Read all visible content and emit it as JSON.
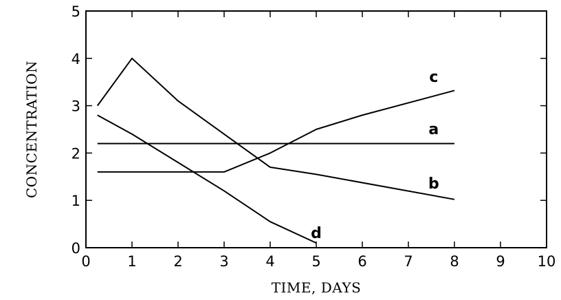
{
  "chart_data": {
    "type": "line",
    "title": "",
    "xlabel": "TIME, DAYS",
    "ylabel": "CONCENTRATION",
    "xlim": [
      0,
      10
    ],
    "ylim": [
      0,
      5
    ],
    "x_ticks": [
      0,
      1,
      2,
      3,
      4,
      5,
      6,
      7,
      8,
      9,
      10
    ],
    "y_ticks": [
      0,
      1,
      2,
      3,
      4,
      5
    ],
    "grid": false,
    "legend": "none",
    "series": [
      {
        "name": "a",
        "x": [
          0.25,
          8
        ],
        "y": [
          2.2,
          2.2
        ]
      },
      {
        "name": "b",
        "x": [
          0.25,
          1,
          2,
          3,
          4,
          5,
          8
        ],
        "y": [
          3.0,
          4.0,
          3.1,
          2.4,
          1.7,
          1.55,
          1.02
        ]
      },
      {
        "name": "c",
        "x": [
          0.25,
          3,
          4,
          5,
          6,
          8
        ],
        "y": [
          1.6,
          1.6,
          2.0,
          2.5,
          2.8,
          3.32
        ]
      },
      {
        "name": "d",
        "x": [
          0.25,
          1,
          2,
          3,
          4,
          5
        ],
        "y": [
          2.8,
          2.4,
          1.8,
          1.2,
          0.55,
          0.1
        ]
      }
    ],
    "series_label_anchors": [
      {
        "name": "a",
        "x": 7.55,
        "y": 2.4
      },
      {
        "name": "b",
        "x": 7.55,
        "y": 1.25
      },
      {
        "name": "c",
        "x": 7.55,
        "y": 3.5
      },
      {
        "name": "d",
        "x": 5.0,
        "y": 0.2
      }
    ]
  }
}
